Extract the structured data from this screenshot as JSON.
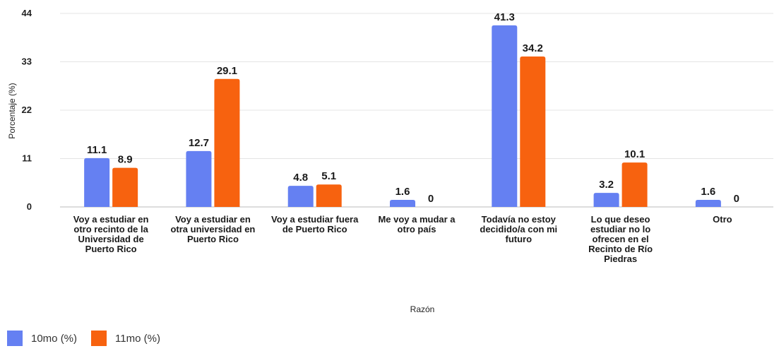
{
  "chart_data": {
    "type": "bar",
    "title": "",
    "xlabel": "Razón",
    "ylabel": "Porcentaje (%)",
    "ylim": [
      0,
      44
    ],
    "yticks": [
      0,
      11,
      22,
      33,
      44
    ],
    "grid": true,
    "legend_position": "bottom-left",
    "categories": [
      [
        "Voy a estudiar en",
        "otro recinto de la",
        "Universidad de",
        "Puerto Rico"
      ],
      [
        "Voy a estudiar en",
        "otra universidad en",
        "Puerto Rico"
      ],
      [
        "Voy a estudiar fuera",
        "de Puerto Rico"
      ],
      [
        "Me voy a mudar a",
        "otro país"
      ],
      [
        "Todavía no estoy",
        "decidido/a con mi",
        "futuro"
      ],
      [
        "Lo que deseo",
        "estudiar no lo",
        "ofrecen en el",
        "Recinto de Río",
        "Piedras"
      ],
      [
        "Otro"
      ]
    ],
    "series": [
      {
        "name": "10mo (%)",
        "color": "#6580f2",
        "values": [
          11.1,
          12.7,
          4.8,
          1.6,
          41.3,
          3.2,
          1.6
        ]
      },
      {
        "name": "11mo (%)",
        "color": "#f7620f",
        "values": [
          8.9,
          29.1,
          5.1,
          0,
          34.2,
          10.1,
          0
        ]
      }
    ]
  }
}
